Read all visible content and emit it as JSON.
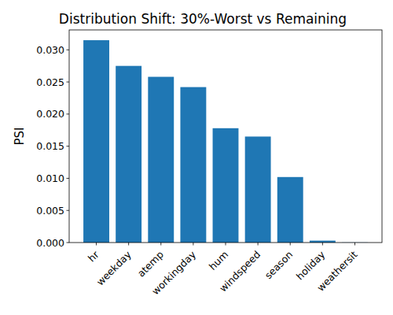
{
  "chart_data": {
    "type": "bar",
    "title": "Distribution Shift: 30%-Worst vs Remaining",
    "y_label": "PSI",
    "categories": [
      "hr",
      "weekday",
      "atemp",
      "workingday",
      "hum",
      "windspeed",
      "season",
      "holiday",
      "weathersit"
    ],
    "values": [
      0.0315,
      0.0275,
      0.0258,
      0.0242,
      0.0178,
      0.0165,
      0.0102,
      0.0003,
      2e-05
    ],
    "color": "#1f77b4",
    "ylim": [
      0,
      0.0331
    ],
    "yticks": [
      {
        "value": 0,
        "label": "0.000"
      },
      {
        "value": 0.005,
        "label": "0.005"
      },
      {
        "value": 0.01,
        "label": "0.010"
      },
      {
        "value": 0.015,
        "label": "0.015"
      },
      {
        "value": 0.02,
        "label": "0.020"
      },
      {
        "value": 0.025,
        "label": "0.025"
      },
      {
        "value": 0.03,
        "label": "0.030"
      }
    ],
    "grid": false
  }
}
